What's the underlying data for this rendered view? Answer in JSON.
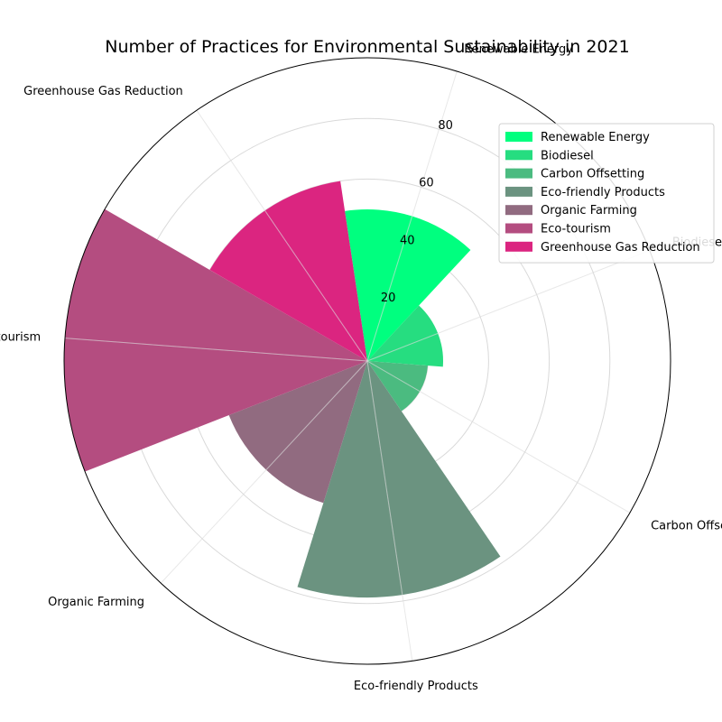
{
  "chart_data": {
    "type": "bar",
    "subtype": "polar",
    "title": "Number of Practices for Environmental Sustainability in 2021",
    "categories": [
      "Renewable Energy",
      "Biodiesel",
      "Carbon Offsetting",
      "Eco-friendly Products",
      "Organic Farming",
      "Eco-tourism",
      "Greenhouse Gas Reduction"
    ],
    "values": [
      50,
      25,
      20,
      78,
      49,
      100,
      60
    ],
    "colors": [
      "#00ff7f",
      "#26dd80",
      "#4bbb80",
      "#6b9380",
      "#916b80",
      "#b44d80",
      "#db2580"
    ],
    "radial_ticks": [
      20,
      40,
      60,
      80
    ],
    "rlim": [
      0,
      100
    ],
    "grid": true,
    "legend": {
      "position": "upper-right",
      "entries": [
        "Renewable Energy",
        "Biodiesel",
        "Carbon Offsetting",
        "Eco-friendly Products",
        "Organic Farming",
        "Eco-tourism",
        "Greenhouse Gas Reduction"
      ]
    }
  }
}
